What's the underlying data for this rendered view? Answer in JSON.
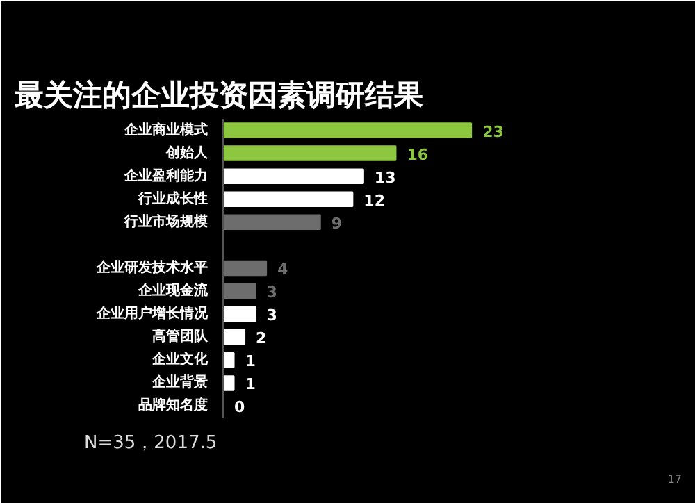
{
  "chart_data": {
    "type": "bar",
    "orientation": "horizontal",
    "title": "最关注的企业投资因素调研结果",
    "categories": [
      "企业商业模式",
      "创始人",
      "企业盈利能力",
      "行业成长性",
      "行业市场规模",
      null,
      "企业研发技术水平",
      "企业现金流",
      "企业用户增长情况",
      "高管团队",
      "企业文化",
      "企业背景",
      "品牌知名度"
    ],
    "values": [
      23,
      16,
      13,
      12,
      9,
      null,
      4,
      3,
      3,
      2,
      1,
      1,
      0
    ],
    "colors": [
      "#8dc63f",
      "#8dc63f",
      "#ffffff",
      "#ffffff",
      "#6d6d6d",
      "#6d6d6d",
      "#6d6d6d",
      "#6d6d6d",
      "#ffffff",
      "#ffffff",
      "#ffffff",
      "#ffffff",
      "#ffffff"
    ],
    "data_labels": true,
    "grid": false,
    "annotations": [
      "N=35，2017.5",
      "17"
    ]
  }
}
